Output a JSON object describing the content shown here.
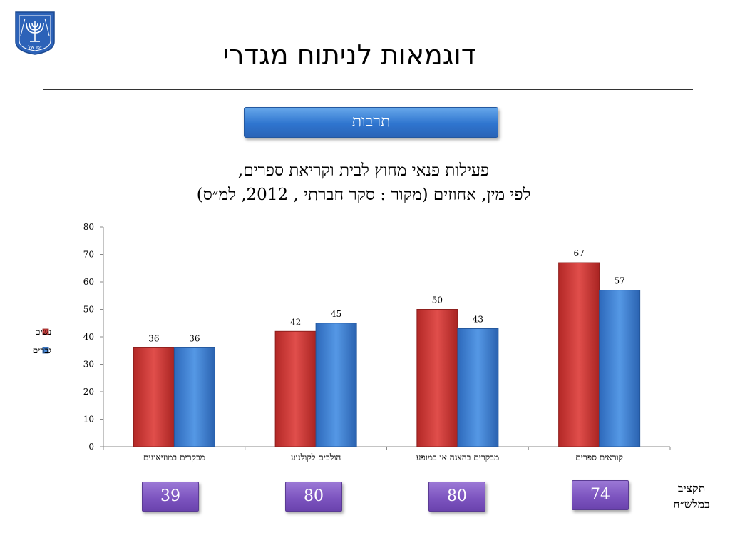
{
  "slide": {
    "title": "דוגמאות לניתוח מגדרי",
    "topic": "תרבות",
    "subtitle_line1": "פעילות פנאי מחוץ לבית וקריאת ספרים,",
    "subtitle_line2": "לפי מין, אחוזים (מקור : סקר חברתי , 2012, למ״ס)",
    "emblem_text": "ישראל"
  },
  "budget": {
    "label_line1": "תקציב",
    "label_line2": "במלש״ח",
    "values": [
      "39",
      "80",
      "80",
      "74"
    ]
  },
  "colors": {
    "women": "#d23a38",
    "men": "#3d7fd2",
    "topic_button": "#3b7fd6",
    "budget_box": "#7d55c0",
    "emblem": "#2c62b8"
  },
  "chart_data": {
    "type": "bar",
    "categories": [
      "מבקרים במוזיאונים",
      "הולכים לקולנוע",
      "מבקרים בהצגה או במופע",
      "קוראים ספרים"
    ],
    "series": [
      {
        "name": "נשים",
        "values": [
          36,
          42,
          50,
          67
        ]
      },
      {
        "name": "גברים",
        "values": [
          36,
          45,
          43,
          57
        ]
      }
    ],
    "y_ticks": [
      0,
      10,
      20,
      30,
      40,
      50,
      60,
      70,
      80
    ],
    "ylim": [
      0,
      80
    ],
    "grid": false,
    "legend_position": "left",
    "data_labels": true
  }
}
